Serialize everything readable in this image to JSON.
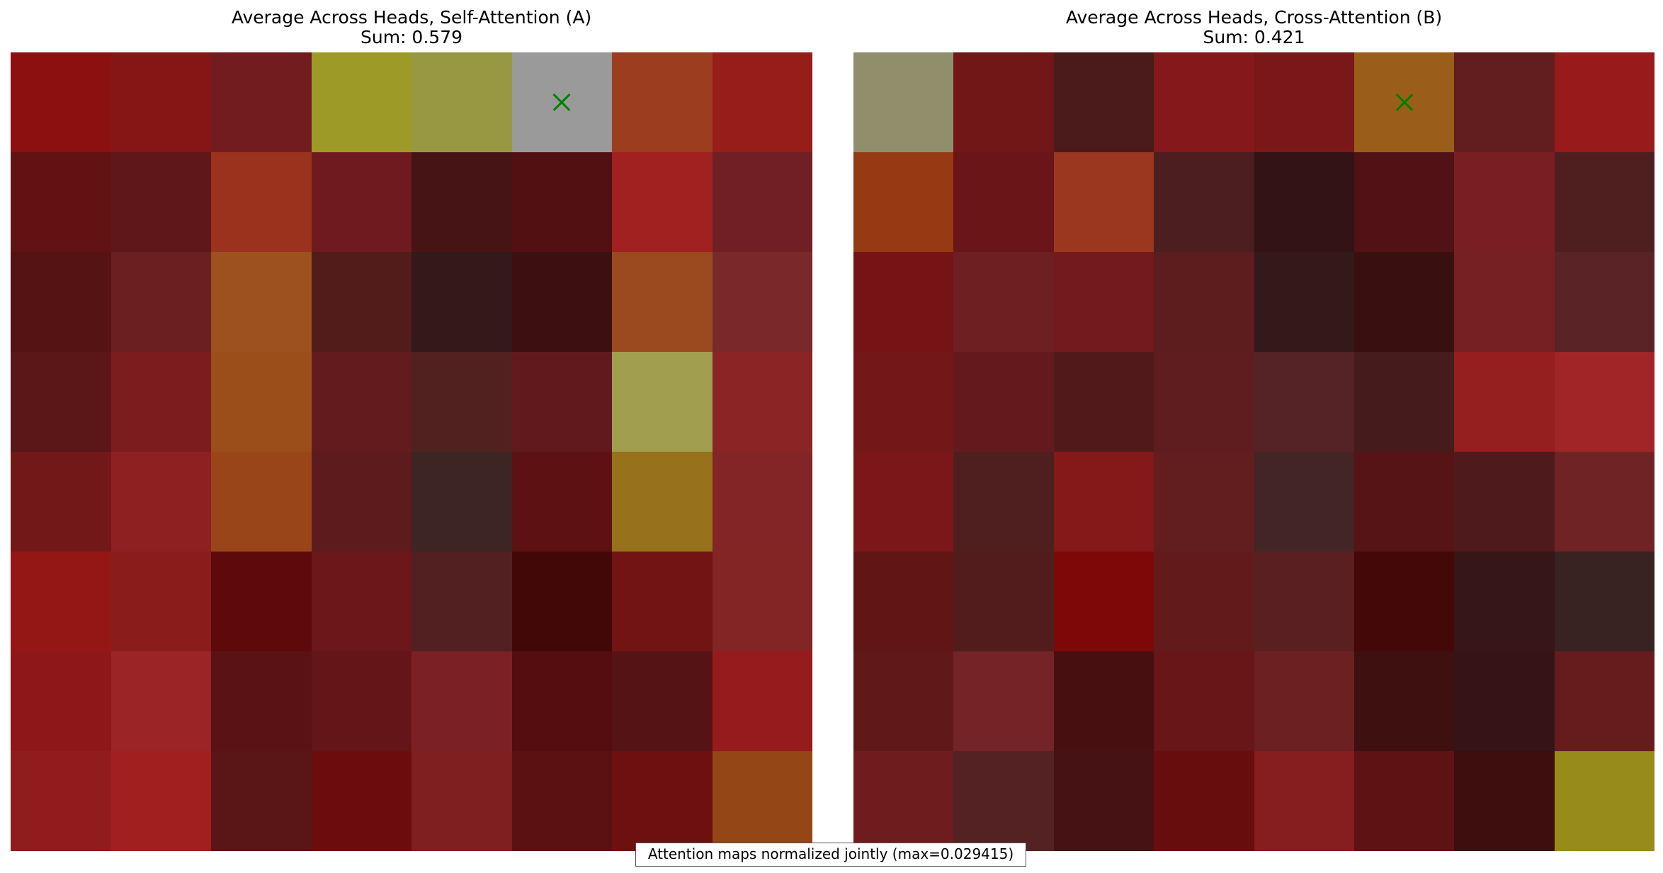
{
  "footnote": "Attention maps normalized jointly (max=0.029415)",
  "chart_data": [
    {
      "type": "heatmap",
      "title": "Average Across Heads, Self-Attention (A)",
      "subtitle": "Sum: 0.579",
      "rows": 8,
      "cols": 8,
      "marker": {
        "row": 0,
        "col": 5,
        "symbol": "x",
        "color": "#008000"
      },
      "colors": [
        [
          "#8c1010",
          "#861515",
          "#721c1f",
          "#9e9a27",
          "#989842",
          "#9a9a9a",
          "#9c3d20",
          "#971e18"
        ],
        [
          "#631214",
          "#5f1719",
          "#9a321e",
          "#6f1a1e",
          "#471415",
          "#521012",
          "#a12121",
          "#702024"
        ],
        [
          "#551314",
          "#6b1f20",
          "#9c511e",
          "#521c1b",
          "#34181a",
          "#3e0f10",
          "#9b4a1f",
          "#7a292b"
        ],
        [
          "#5b1717",
          "#7c1c1e",
          "#9b4d1a",
          "#631b1e",
          "#512120",
          "#62191e",
          "#a19f4f",
          "#8a2425"
        ],
        [
          "#731818",
          "#8f2022",
          "#9a4519",
          "#5d1b1d",
          "#3d2524",
          "#5e1112",
          "#97711b",
          "#832426"
        ],
        [
          "#941716",
          "#8b1c1c",
          "#5e0a0b",
          "#6c181b",
          "#522020",
          "#420808",
          "#721414",
          "#832425"
        ],
        [
          "#8e1819",
          "#9b2427",
          "#5b1214",
          "#641517",
          "#7c2123",
          "#550d0f",
          "#551315",
          "#951b1c"
        ],
        [
          "#901c1e",
          "#a11f1f",
          "#5a1516",
          "#6d0c0d",
          "#7f1f20",
          "#5b1012",
          "#6e0f10",
          "#954616"
        ]
      ]
    },
    {
      "type": "heatmap",
      "title": "Average Across Heads, Cross-Attention (B)",
      "subtitle": "Sum: 0.421",
      "rows": 8,
      "cols": 8,
      "marker": {
        "row": 0,
        "col": 5,
        "symbol": "x",
        "color": "#008000"
      },
      "colors": [
        [
          "#918f6b",
          "#711717",
          "#4b1b1b",
          "#84181b",
          "#7a1819",
          "#9a5e1a",
          "#621d1e",
          "#981a1a"
        ],
        [
          "#963a14",
          "#6a1517",
          "#9b371e",
          "#4c1e1f",
          "#331315",
          "#501214",
          "#7a1f21",
          "#4f1f20"
        ],
        [
          "#761415",
          "#6d1f21",
          "#731a1c",
          "#5b1d1e",
          "#34191a",
          "#3a0f10",
          "#762022",
          "#5a2326"
        ],
        [
          "#731718",
          "#641a1c",
          "#51191a",
          "#5f1d1f",
          "#552325",
          "#461b1b",
          "#951e1f",
          "#a12526"
        ],
        [
          "#7b1619",
          "#4f1f1f",
          "#851819",
          "#621d1e",
          "#442526",
          "#561416",
          "#4f1a1c",
          "#702324"
        ],
        [
          "#621515",
          "#521c1d",
          "#7c0808",
          "#621a1b",
          "#5a1f20",
          "#440808",
          "#361616",
          "#382222"
        ],
        [
          "#611819",
          "#742326",
          "#480f10",
          "#681618",
          "#6c2022",
          "#3e1010",
          "#361415",
          "#661b1c"
        ],
        [
          "#6f1c1f",
          "#542223",
          "#461213",
          "#680d0e",
          "#861d1f",
          "#5f1214",
          "#3e0d0d",
          "#978c1a"
        ]
      ]
    }
  ]
}
